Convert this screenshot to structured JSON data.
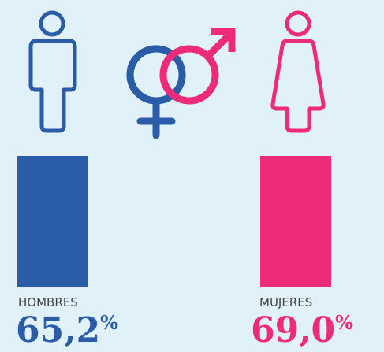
{
  "groups": [
    {
      "label": "HOMBRES",
      "value": "65,2",
      "unit": "%"
    },
    {
      "label": "MUJERES",
      "value": "69,0",
      "unit": "%"
    }
  ]
}
